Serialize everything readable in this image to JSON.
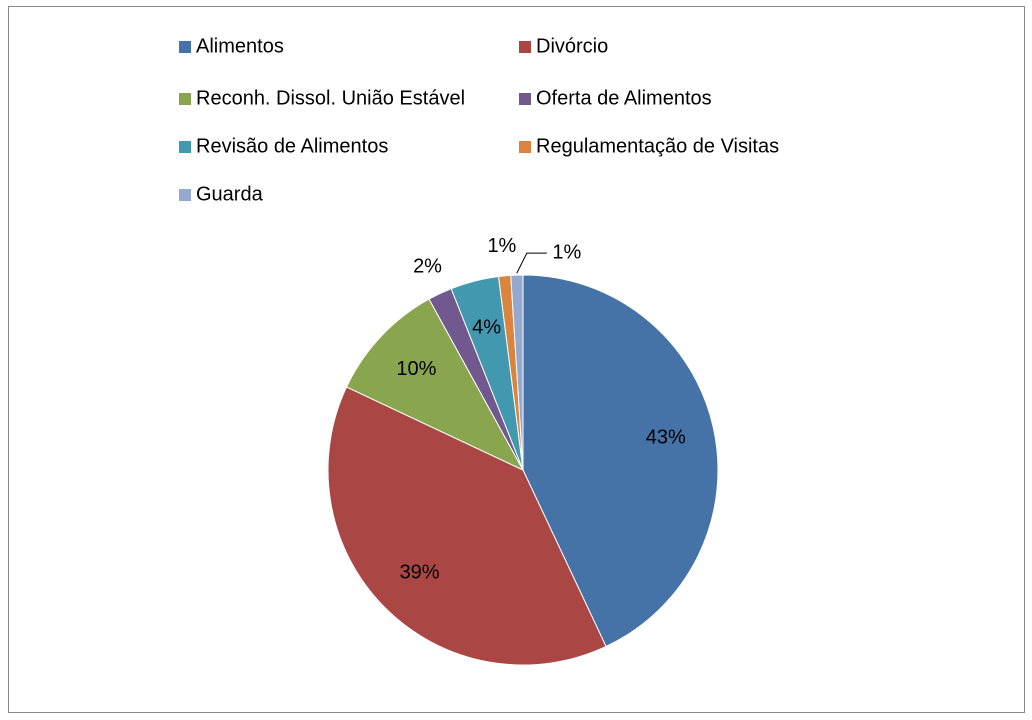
{
  "chart_data": {
    "type": "pie",
    "categories": [
      "Alimentos",
      "Divórcio",
      "Reconh. Dissol. União Estável",
      "Oferta de Alimentos",
      "Revisão de Alimentos",
      "Regulamentação de Visitas",
      "Guarda"
    ],
    "values": [
      43,
      39,
      10,
      2,
      4,
      1,
      1
    ],
    "value_labels": [
      "43%",
      "39%",
      "10%",
      "2%",
      "4%",
      "1%",
      "1%"
    ],
    "colors": [
      "#4572A7",
      "#AA4643",
      "#89A54E",
      "#71588F",
      "#4198AF",
      "#DB843D",
      "#93A9CF"
    ],
    "legend": "top"
  }
}
